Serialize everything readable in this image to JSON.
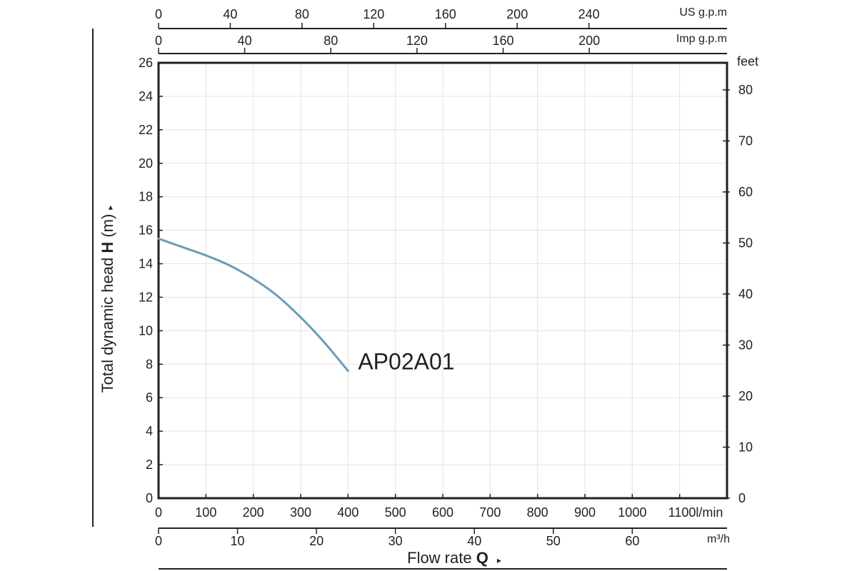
{
  "chart_data": {
    "type": "line",
    "title": "",
    "ylabel_prefix": "Total dynamic head ",
    "ylabel_bold": "H",
    "ylabel_suffix": " (m)",
    "ylabel_arrow": "▸",
    "xlabel_prefix": "Flow rate ",
    "xlabel_bold": "Q",
    "xlabel_arrow": "▸",
    "xlim": [
      0,
      1200
    ],
    "ylim": [
      0,
      26
    ],
    "grid": true,
    "series": [
      {
        "name": "AP02A01",
        "color": "#6a9bb7",
        "x": [
          0,
          50,
          100,
          150,
          200,
          250,
          300,
          350,
          400
        ],
        "y": [
          15.5,
          15.0,
          14.5,
          13.9,
          13.1,
          12.1,
          10.8,
          9.3,
          7.6
        ]
      }
    ],
    "y_axis": {
      "ticks": [
        0,
        2,
        4,
        6,
        8,
        10,
        12,
        14,
        16,
        18,
        20,
        22,
        24,
        26
      ],
      "labels": [
        "0",
        "2",
        "4",
        "6",
        "8",
        "10",
        "12",
        "14",
        "16",
        "18",
        "20",
        "22",
        "24",
        "26"
      ]
    },
    "y_axis_right": {
      "unit": "feet",
      "ticks": [
        0,
        10,
        20,
        30,
        40,
        50,
        60,
        70,
        80
      ],
      "labels": [
        "0",
        "10",
        "20",
        "30",
        "40",
        "50",
        "60",
        "70",
        "80"
      ]
    },
    "x_axis_lpm": {
      "ticks": [
        0,
        100,
        200,
        300,
        400,
        500,
        600,
        700,
        800,
        900,
        1000,
        1100
      ],
      "labels": [
        "0",
        "100",
        "200",
        "300",
        "400",
        "500",
        "600",
        "700",
        "800",
        "900",
        "1000",
        "1100l/min"
      ]
    },
    "x_axis_m3h": {
      "unit": "m³/h",
      "ticks": [
        0,
        10,
        20,
        30,
        40,
        50,
        60
      ],
      "labels": [
        "0",
        "10",
        "20",
        "30",
        "40",
        "50",
        "60"
      ]
    },
    "x_axis_imp": {
      "unit": "Imp g.p.m",
      "ticks": [
        0,
        40,
        80,
        120,
        160,
        200
      ],
      "labels": [
        "0",
        "40",
        "80",
        "120",
        "160",
        "200"
      ]
    },
    "x_axis_us": {
      "unit": "US g.p.m",
      "ticks": [
        0,
        40,
        80,
        120,
        160,
        200,
        240
      ],
      "labels": [
        "0",
        "40",
        "80",
        "120",
        "160",
        "200",
        "240"
      ]
    }
  }
}
